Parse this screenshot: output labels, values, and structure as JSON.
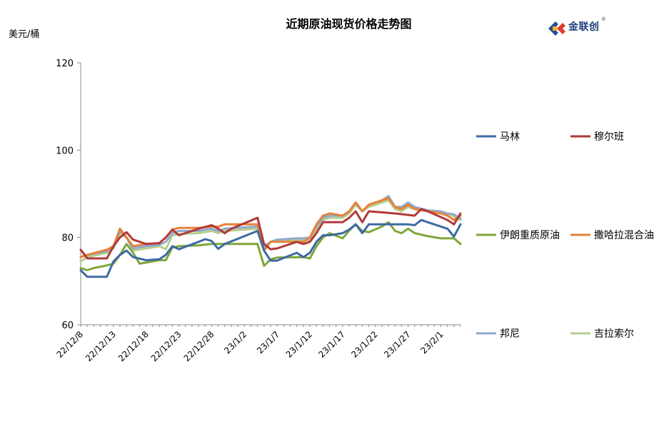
{
  "header": {
    "title": "近期原油现货价格走势图",
    "unit": "美元/桶",
    "logo_text": "金联创",
    "logo_reg": "®"
  },
  "colors": {
    "马林": "#3d6aa3",
    "穆尔班": "#b13a3a",
    "伊朗重质原油": "#7ea63a",
    "撒哈拉混合油": "#e6823a",
    "邦尼": "#8fa9cf",
    "吉拉索尔": "#b6cf8c"
  },
  "chart_data": {
    "type": "line",
    "title": "近期原油现货价格走势图",
    "ylabel": "美元/桶",
    "xlabel": "",
    "ylim": [
      60,
      120
    ],
    "yticks": [
      60,
      80,
      100,
      120
    ],
    "grid": false,
    "legend_position": "right",
    "x_tick_labels": [
      "22/12/8",
      "22/12/13",
      "22/12/18",
      "22/12/23",
      "22/12/28",
      "23/1/2",
      "23/1/7",
      "23/1/12",
      "23/1/17",
      "23/1/22",
      "23/1/27",
      "23/2/1"
    ],
    "x_tick_positions": [
      0,
      5,
      10,
      15,
      20,
      25,
      30,
      35,
      40,
      45,
      50,
      55
    ],
    "series": [
      {
        "name": "马林",
        "points": [
          [
            0,
            72.5
          ],
          [
            1,
            71
          ],
          [
            3,
            71
          ],
          [
            4,
            71
          ],
          [
            5,
            74.5
          ],
          [
            6,
            76
          ],
          [
            7,
            77
          ],
          [
            8,
            75.5
          ],
          [
            10,
            74.8
          ],
          [
            12,
            75
          ],
          [
            13,
            76
          ],
          [
            14,
            78
          ],
          [
            15,
            77.3
          ],
          [
            18,
            79
          ],
          [
            19,
            79.6
          ],
          [
            20,
            79.2
          ],
          [
            21,
            77.4
          ],
          [
            22,
            78.5
          ],
          [
            27,
            81.5
          ],
          [
            28,
            77
          ],
          [
            29,
            74.7
          ],
          [
            30,
            74.7
          ],
          [
            31,
            75.3
          ],
          [
            33,
            76.5
          ],
          [
            34,
            75.5
          ],
          [
            35,
            76.5
          ],
          [
            36,
            79
          ],
          [
            37,
            80.5
          ],
          [
            38,
            80.5
          ],
          [
            40,
            81
          ],
          [
            41,
            81.8
          ],
          [
            42,
            83
          ],
          [
            43,
            81
          ],
          [
            44,
            83
          ],
          [
            47,
            83
          ],
          [
            50,
            83
          ],
          [
            51,
            82.8
          ],
          [
            52,
            84
          ],
          [
            53,
            83.5
          ],
          [
            56,
            82
          ],
          [
            57,
            80.2
          ],
          [
            58,
            83
          ]
        ]
      },
      {
        "name": "穆尔班",
        "points": [
          [
            0,
            77.2
          ],
          [
            1,
            75.2
          ],
          [
            2,
            75.2
          ],
          [
            4,
            75.2
          ],
          [
            5,
            78
          ],
          [
            6,
            80
          ],
          [
            7,
            81.2
          ],
          [
            8,
            79.5
          ],
          [
            10,
            78.5
          ],
          [
            12,
            78.7
          ],
          [
            13,
            80
          ],
          [
            14,
            81.8
          ],
          [
            15,
            80.5
          ],
          [
            18,
            82
          ],
          [
            20,
            82.8
          ],
          [
            21,
            82
          ],
          [
            22,
            81
          ],
          [
            23,
            82
          ],
          [
            27,
            84.5
          ],
          [
            28,
            78.5
          ],
          [
            29,
            77.3
          ],
          [
            30,
            77.5
          ],
          [
            33,
            79
          ],
          [
            34,
            78.5
          ],
          [
            35,
            79
          ],
          [
            36,
            81
          ],
          [
            37,
            83.5
          ],
          [
            40,
            83.5
          ],
          [
            41,
            84.5
          ],
          [
            42,
            86
          ],
          [
            43,
            83.5
          ],
          [
            44,
            86
          ],
          [
            48,
            85.5
          ],
          [
            51,
            85
          ],
          [
            52,
            86.5
          ],
          [
            53,
            86
          ],
          [
            56,
            84
          ],
          [
            57,
            83
          ],
          [
            58,
            85.5
          ]
        ]
      },
      {
        "name": "伊朗重质原油",
        "points": [
          [
            0,
            73
          ],
          [
            1,
            72.5
          ],
          [
            2,
            73
          ],
          [
            4,
            73.6
          ],
          [
            5,
            74
          ],
          [
            6,
            76
          ],
          [
            7,
            78.5
          ],
          [
            8,
            76.5
          ],
          [
            9,
            74
          ],
          [
            12,
            74.8
          ],
          [
            13,
            74.8
          ],
          [
            14,
            77.7
          ],
          [
            15,
            78
          ],
          [
            18,
            78.2
          ],
          [
            20,
            78.5
          ],
          [
            22,
            78.5
          ],
          [
            27,
            78.5
          ],
          [
            28,
            73.5
          ],
          [
            29,
            75
          ],
          [
            30,
            75.4
          ],
          [
            34,
            75.5
          ],
          [
            35,
            75.2
          ],
          [
            36,
            78
          ],
          [
            37,
            80
          ],
          [
            38,
            81
          ],
          [
            40,
            79.8
          ],
          [
            41,
            81.6
          ],
          [
            42,
            83
          ],
          [
            43,
            81.5
          ],
          [
            44,
            81.2
          ],
          [
            46,
            82.5
          ],
          [
            47,
            83.5
          ],
          [
            48,
            81.5
          ],
          [
            49,
            81
          ],
          [
            50,
            82
          ],
          [
            51,
            81
          ],
          [
            53,
            80.3
          ],
          [
            55,
            79.8
          ],
          [
            56,
            79.8
          ],
          [
            57,
            79.8
          ],
          [
            58,
            78.5
          ]
        ]
      },
      {
        "name": "撒哈拉混合油",
        "points": [
          [
            0,
            75.5
          ],
          [
            1,
            76
          ],
          [
            4,
            77.2
          ],
          [
            5,
            78
          ],
          [
            6,
            82
          ],
          [
            7,
            80
          ],
          [
            8,
            78
          ],
          [
            10,
            78.5
          ],
          [
            12,
            78.7
          ],
          [
            13,
            80
          ],
          [
            14,
            81.8
          ],
          [
            15,
            82.2
          ],
          [
            18,
            82.2
          ],
          [
            20,
            82.5
          ],
          [
            21,
            82.5
          ],
          [
            22,
            83
          ],
          [
            27,
            83
          ],
          [
            28,
            77
          ],
          [
            29,
            79
          ],
          [
            30,
            79
          ],
          [
            33,
            79
          ],
          [
            34,
            79
          ],
          [
            35,
            80
          ],
          [
            36,
            83
          ],
          [
            37,
            85
          ],
          [
            38,
            85.5
          ],
          [
            40,
            85
          ],
          [
            41,
            86
          ],
          [
            42,
            88
          ],
          [
            43,
            86
          ],
          [
            44,
            87.5
          ],
          [
            46,
            88.5
          ],
          [
            47,
            89
          ],
          [
            48,
            87
          ],
          [
            49,
            86.5
          ],
          [
            50,
            87.5
          ],
          [
            51,
            86.5
          ],
          [
            53,
            86
          ],
          [
            55,
            85.5
          ],
          [
            56,
            85
          ],
          [
            57,
            84
          ],
          [
            58,
            85
          ]
        ]
      },
      {
        "name": "邦尼",
        "points": [
          [
            0,
            75.5
          ],
          [
            1,
            76
          ],
          [
            4,
            76.8
          ],
          [
            5,
            77.8
          ],
          [
            6,
            81.5
          ],
          [
            7,
            80
          ],
          [
            8,
            77.5
          ],
          [
            10,
            78
          ],
          [
            12,
            78.3
          ],
          [
            13,
            79
          ],
          [
            14,
            81
          ],
          [
            15,
            81.5
          ],
          [
            18,
            81.5
          ],
          [
            20,
            82
          ],
          [
            21,
            81.5
          ],
          [
            22,
            82
          ],
          [
            27,
            82.5
          ],
          [
            28,
            78
          ],
          [
            29,
            79
          ],
          [
            30,
            79.5
          ],
          [
            33,
            79.8
          ],
          [
            34,
            79.8
          ],
          [
            35,
            80
          ],
          [
            36,
            82.5
          ],
          [
            37,
            84.5
          ],
          [
            38,
            85
          ],
          [
            40,
            85
          ],
          [
            41,
            86
          ],
          [
            42,
            88
          ],
          [
            43,
            86
          ],
          [
            44,
            87.5
          ],
          [
            46,
            88.5
          ],
          [
            47,
            89.5
          ],
          [
            48,
            87
          ],
          [
            49,
            87
          ],
          [
            50,
            88
          ],
          [
            51,
            87
          ],
          [
            53,
            86.2
          ],
          [
            55,
            86
          ],
          [
            56,
            85.5
          ],
          [
            57,
            85.3
          ],
          [
            58,
            84.3
          ]
        ]
      },
      {
        "name": "吉拉索尔",
        "points": [
          [
            0,
            74.5
          ],
          [
            1,
            75.5
          ],
          [
            4,
            76.5
          ],
          [
            5,
            77.5
          ],
          [
            6,
            81
          ],
          [
            7,
            80
          ],
          [
            8,
            77
          ],
          [
            10,
            77.5
          ],
          [
            12,
            78
          ],
          [
            13,
            77.3
          ],
          [
            14,
            80.5
          ],
          [
            15,
            80.8
          ],
          [
            18,
            81
          ],
          [
            20,
            81.5
          ],
          [
            21,
            81
          ],
          [
            22,
            81.5
          ],
          [
            27,
            82
          ],
          [
            28,
            77.5
          ],
          [
            29,
            79
          ],
          [
            30,
            79.4
          ],
          [
            33,
            79.4
          ],
          [
            34,
            79.4
          ],
          [
            35,
            79.2
          ],
          [
            36,
            82
          ],
          [
            37,
            84
          ],
          [
            38,
            84.5
          ],
          [
            40,
            84.5
          ],
          [
            41,
            85.5
          ],
          [
            42,
            87.5
          ],
          [
            43,
            86
          ],
          [
            44,
            87
          ],
          [
            46,
            88
          ],
          [
            47,
            88.5
          ],
          [
            48,
            86.5
          ],
          [
            49,
            86
          ],
          [
            50,
            87
          ],
          [
            51,
            86.5
          ],
          [
            53,
            86
          ],
          [
            55,
            85.6
          ],
          [
            56,
            85.5
          ],
          [
            57,
            84.8
          ],
          [
            58,
            84
          ]
        ]
      }
    ]
  }
}
